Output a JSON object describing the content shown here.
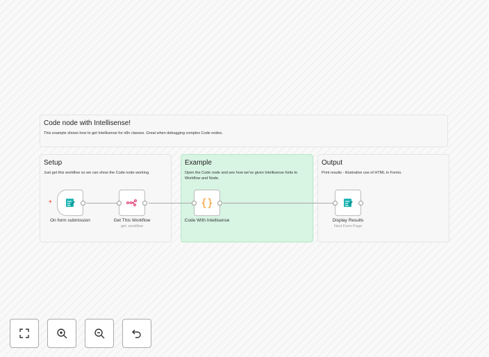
{
  "header_note": {
    "title": "Code node with Intellisense!",
    "text": "This example shows how to get Intellisense for n8n classes. Great when debugging complex Code nodes."
  },
  "sections": [
    {
      "title": "Setup",
      "text": "Just get this workflow so we can show the Code node working."
    },
    {
      "title": "Example",
      "text": "Open the Code node and see how we've given Intellisense hints to Workflow and Node."
    },
    {
      "title": "Output",
      "text": "Print results - illustrative use of HTML in Forms."
    }
  ],
  "nodes": [
    {
      "label": "On form submission",
      "icon": "form-icon"
    },
    {
      "label": "Get This Workflow",
      "subtitle": "get: workflow",
      "icon": "n8n-icon"
    },
    {
      "label": "Code With Intellisense",
      "icon": "code-braces-icon",
      "glyph": "{}"
    },
    {
      "label": "Display Results",
      "subtitle": "Next Form Page",
      "icon": "form-icon"
    }
  ],
  "controls": [
    "fit-view",
    "zoom-in",
    "zoom-out",
    "reset-zoom"
  ],
  "colors": {
    "accent_green": "#d8f4e3",
    "form_teal": "#1fb5b5",
    "n8n_pink": "#e5427a",
    "code_orange": "#f59a23",
    "trigger_bolt": "#ff6d5a"
  }
}
